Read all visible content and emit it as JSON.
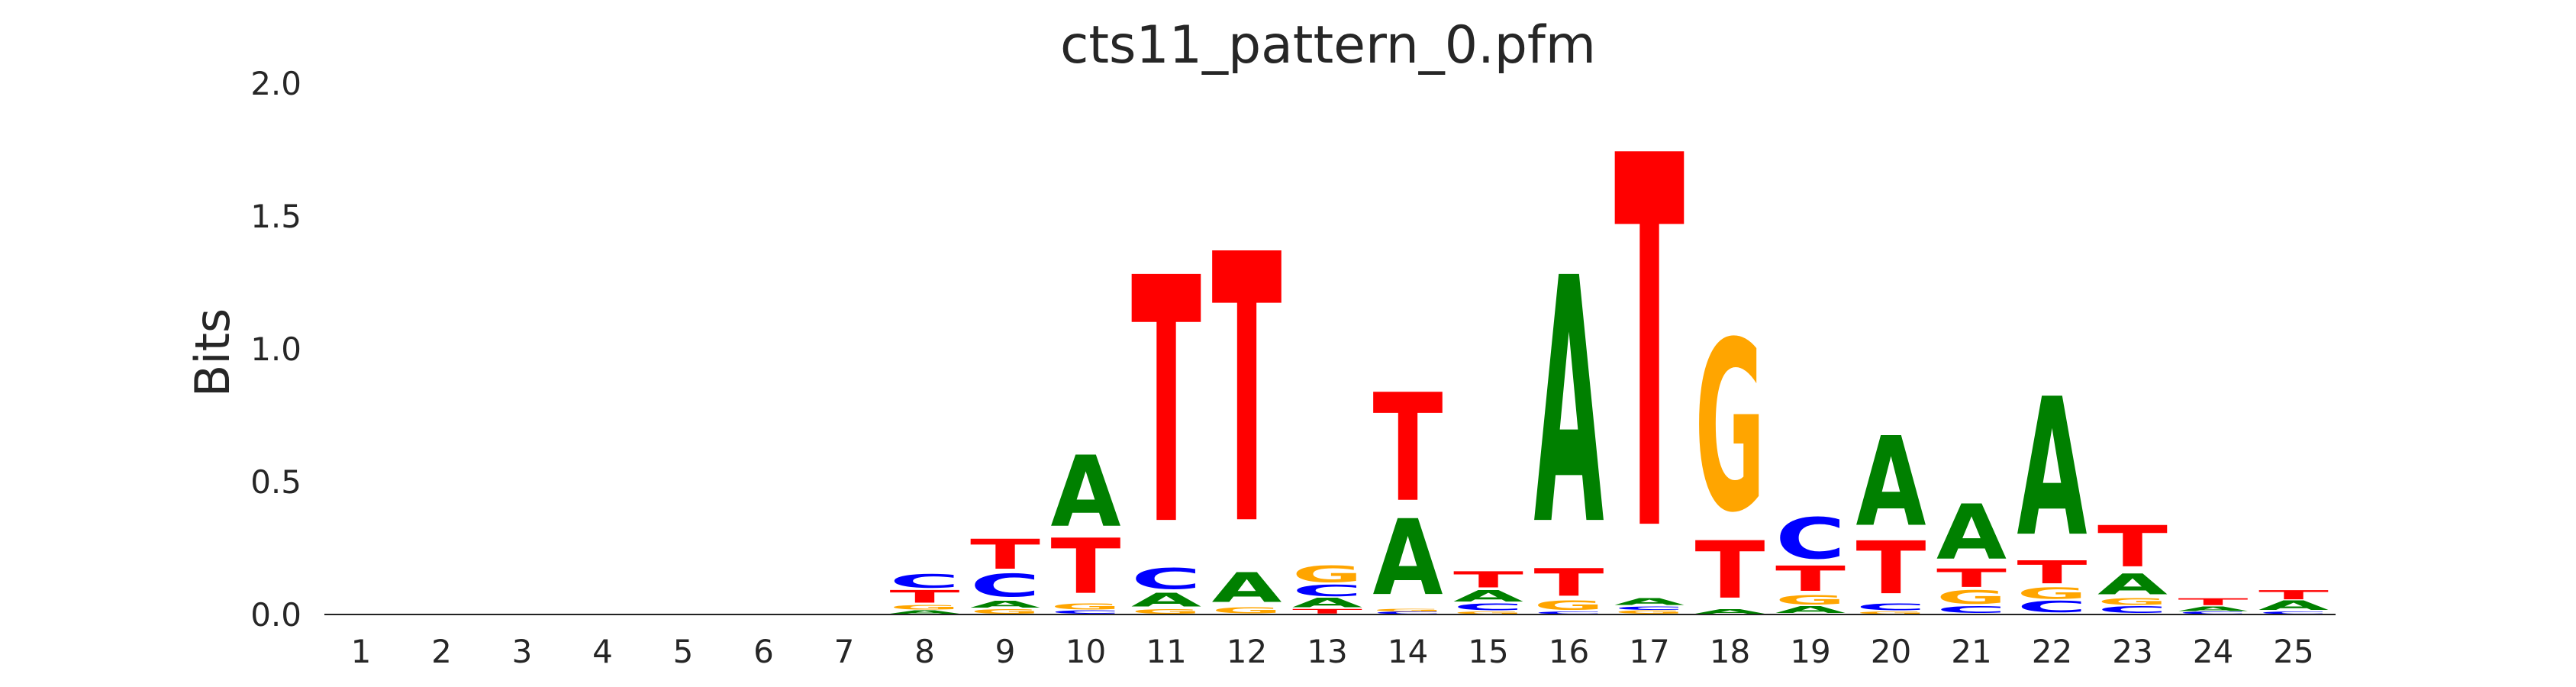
{
  "chart_data": {
    "type": "sequence-logo",
    "title": "cts11_pattern_0.pfm",
    "ylabel": "Bits",
    "ylim": [
      0,
      2.0
    ],
    "yticks": [
      "0.0",
      "0.5",
      "1.0",
      "1.5",
      "2.0"
    ],
    "alphabet_colors": {
      "A": "#008000",
      "C": "#0000ff",
      "G": "#ffa500",
      "T": "#ff0000"
    },
    "positions": [
      {
        "pos": "1",
        "stack": []
      },
      {
        "pos": "2",
        "stack": []
      },
      {
        "pos": "3",
        "stack": []
      },
      {
        "pos": "4",
        "stack": []
      },
      {
        "pos": "5",
        "stack": []
      },
      {
        "pos": "6",
        "stack": []
      },
      {
        "pos": "7",
        "stack": []
      },
      {
        "pos": "8",
        "stack": [
          [
            "A",
            0.015
          ],
          [
            "G",
            0.02
          ],
          [
            "T",
            0.055
          ],
          [
            "C",
            0.06
          ]
        ]
      },
      {
        "pos": "9",
        "stack": [
          [
            "G",
            0.02
          ],
          [
            "A",
            0.03
          ],
          [
            "C",
            0.1
          ],
          [
            "T",
            0.13
          ]
        ]
      },
      {
        "pos": "10",
        "stack": [
          [
            "C",
            0.015
          ],
          [
            "G",
            0.025
          ],
          [
            "T",
            0.24
          ],
          [
            "A",
            0.31
          ]
        ]
      },
      {
        "pos": "11",
        "stack": [
          [
            "G",
            0.02
          ],
          [
            "A",
            0.06
          ],
          [
            "C",
            0.09
          ],
          [
            "T",
            1.07
          ]
        ]
      },
      {
        "pos": "12",
        "stack": [
          [
            "G",
            0.025
          ],
          [
            "A",
            0.13
          ],
          [
            "T",
            1.17
          ]
        ]
      },
      {
        "pos": "13",
        "stack": [
          [
            "T",
            0.02
          ],
          [
            "A",
            0.04
          ],
          [
            "C",
            0.05
          ],
          [
            "G",
            0.07
          ]
        ]
      },
      {
        "pos": "14",
        "stack": [
          [
            "C",
            0.01
          ],
          [
            "G",
            0.01
          ],
          [
            "A",
            0.33
          ],
          [
            "T",
            0.47
          ]
        ]
      },
      {
        "pos": "15",
        "stack": [
          [
            "G",
            0.01
          ],
          [
            "C",
            0.03
          ],
          [
            "A",
            0.05
          ],
          [
            "T",
            0.07
          ]
        ]
      },
      {
        "pos": "16",
        "stack": [
          [
            "C",
            0.01
          ],
          [
            "G",
            0.04
          ],
          [
            "T",
            0.12
          ],
          [
            "A",
            1.07
          ]
        ]
      },
      {
        "pos": "17",
        "stack": [
          [
            "G",
            0.015
          ],
          [
            "C",
            0.015
          ],
          [
            "A",
            0.03
          ],
          [
            "T",
            1.62
          ]
        ]
      },
      {
        "pos": "18",
        "stack": [
          [
            "A",
            0.02
          ],
          [
            "T",
            0.25
          ],
          [
            "G",
            0.74
          ]
        ]
      },
      {
        "pos": "19",
        "stack": [
          [
            "A",
            0.03
          ],
          [
            "G",
            0.04
          ],
          [
            "T",
            0.11
          ],
          [
            "C",
            0.18
          ]
        ]
      },
      {
        "pos": "20",
        "stack": [
          [
            "G",
            0.01
          ],
          [
            "C",
            0.03
          ],
          [
            "T",
            0.23
          ],
          [
            "A",
            0.39
          ]
        ]
      },
      {
        "pos": "21",
        "stack": [
          [
            "C",
            0.03
          ],
          [
            "G",
            0.06
          ],
          [
            "T",
            0.08
          ],
          [
            "A",
            0.24
          ]
        ]
      },
      {
        "pos": "22",
        "stack": [
          [
            "C",
            0.05
          ],
          [
            "G",
            0.05
          ],
          [
            "T",
            0.1
          ],
          [
            "A",
            0.6
          ]
        ]
      },
      {
        "pos": "23",
        "stack": [
          [
            "C",
            0.03
          ],
          [
            "G",
            0.03
          ],
          [
            "A",
            0.09
          ],
          [
            "T",
            0.18
          ]
        ]
      },
      {
        "pos": "24",
        "stack": [
          [
            "C",
            0.01
          ],
          [
            "A",
            0.02
          ],
          [
            "T",
            0.03
          ]
        ]
      },
      {
        "pos": "25",
        "stack": [
          [
            "C",
            0.01
          ],
          [
            "A",
            0.04
          ],
          [
            "T",
            0.04
          ]
        ]
      }
    ]
  }
}
